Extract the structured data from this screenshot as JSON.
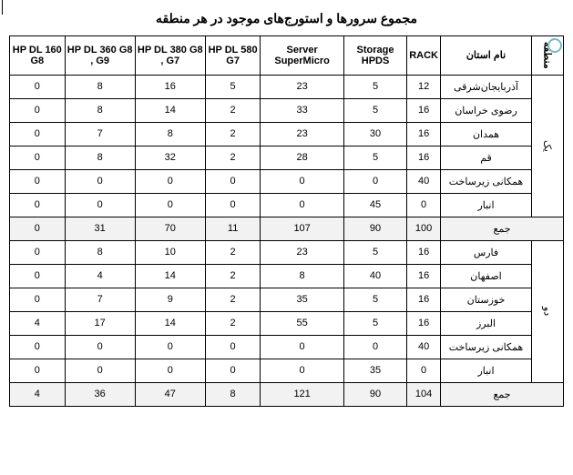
{
  "title": "مجموع سرورها و استورج‌های موجود در هر منطقه",
  "columns": {
    "region": "منطقه",
    "province": "نام استان",
    "rack": "RACK",
    "hpds": "Storage HPDS",
    "supermicro": "Server SuperMicro",
    "dl580": "HP DL 580 G7",
    "dl380": "HP DL 380 G8 , G7",
    "dl360": "HP DL 360 G8 , G9",
    "dl160": "HP DL 160 G8"
  },
  "regions": [
    {
      "name": "یک",
      "rows": [
        {
          "province": "آذربایجان‌شرقی",
          "rack": "12",
          "hpds": "5",
          "sm": "23",
          "dl580": "5",
          "dl380": "16",
          "dl360": "8",
          "dl160": "0"
        },
        {
          "province": "رضوی خراسان",
          "rack": "16",
          "hpds": "5",
          "sm": "33",
          "dl580": "2",
          "dl380": "14",
          "dl360": "8",
          "dl160": "0"
        },
        {
          "province": "همدان",
          "rack": "16",
          "hpds": "30",
          "sm": "23",
          "dl580": "2",
          "dl380": "8",
          "dl360": "7",
          "dl160": "0"
        },
        {
          "province": "قم",
          "rack": "16",
          "hpds": "5",
          "sm": "28",
          "dl580": "2",
          "dl380": "32",
          "dl360": "8",
          "dl160": "0"
        },
        {
          "province": "همکانی زیرساخت",
          "rack": "40",
          "hpds": "0",
          "sm": "0",
          "dl580": "0",
          "dl380": "0",
          "dl360": "0",
          "dl160": "0"
        },
        {
          "province": "انبار",
          "rack": "0",
          "hpds": "45",
          "sm": "0",
          "dl580": "0",
          "dl380": "0",
          "dl360": "0",
          "dl160": "0"
        }
      ],
      "sum": {
        "label": "جمع",
        "rack": "100",
        "hpds": "90",
        "sm": "107",
        "dl580": "11",
        "dl380": "70",
        "dl360": "31",
        "dl160": "0"
      }
    },
    {
      "name": "دو",
      "rows": [
        {
          "province": "فارس",
          "rack": "16",
          "hpds": "5",
          "sm": "23",
          "dl580": "2",
          "dl380": "10",
          "dl360": "8",
          "dl160": "0"
        },
        {
          "province": "اصفهان",
          "rack": "16",
          "hpds": "40",
          "sm": "8",
          "dl580": "2",
          "dl380": "14",
          "dl360": "4",
          "dl160": "0"
        },
        {
          "province": "خوزستان",
          "rack": "16",
          "hpds": "5",
          "sm": "35",
          "dl580": "2",
          "dl380": "9",
          "dl360": "7",
          "dl160": "0"
        },
        {
          "province": "البرز",
          "rack": "16",
          "hpds": "5",
          "sm": "55",
          "dl580": "2",
          "dl380": "14",
          "dl360": "17",
          "dl160": "4"
        },
        {
          "province": "همکانی زیرساخت",
          "rack": "40",
          "hpds": "0",
          "sm": "0",
          "dl580": "0",
          "dl380": "0",
          "dl360": "0",
          "dl160": "0"
        },
        {
          "province": "انبار",
          "rack": "0",
          "hpds": "35",
          "sm": "0",
          "dl580": "0",
          "dl380": "0",
          "dl360": "0",
          "dl160": "0"
        }
      ],
      "sum": {
        "label": "جمع",
        "rack": "104",
        "hpds": "90",
        "sm": "121",
        "dl580": "8",
        "dl380": "47",
        "dl360": "36",
        "dl160": "4"
      }
    }
  ]
}
